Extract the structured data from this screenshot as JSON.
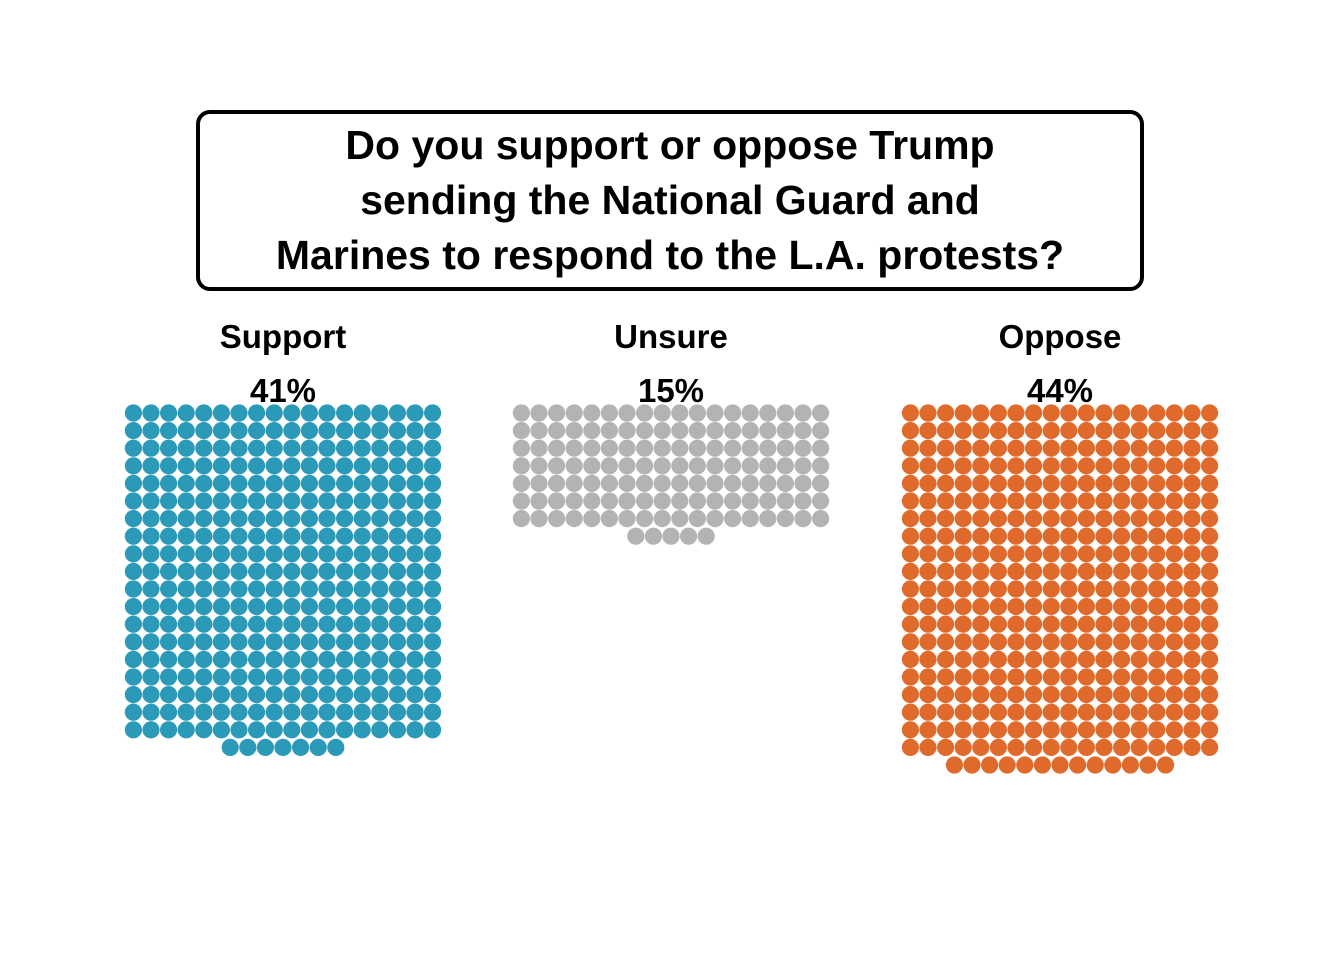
{
  "chart_data": {
    "type": "waffle",
    "title": "Do you support or oppose Trump\nsending the National Guard and\nMarines to respond to the L.A. protests?",
    "columns_per_group": 18,
    "categories": [
      "Support",
      "Unsure",
      "Oppose"
    ],
    "values": [
      41,
      15,
      44
    ],
    "value_labels": [
      "41%",
      "15%",
      "44%"
    ],
    "dot_counts": [
      349,
      131,
      373
    ],
    "colors": [
      "#2b9ab8",
      "#b3b3b3",
      "#e06a2b"
    ]
  }
}
